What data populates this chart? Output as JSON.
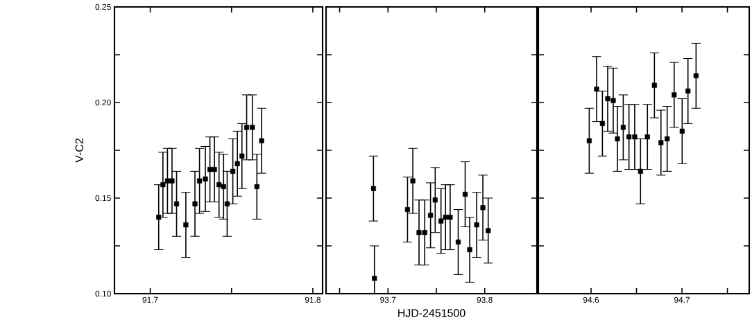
{
  "chart_data": [
    {
      "type": "scatter",
      "ylabel": "V-C2",
      "marker": "square",
      "xlim": [
        91.678,
        91.806
      ],
      "ylim": [
        0.1,
        0.25
      ],
      "xticks": [
        91.7,
        {
          "value": 91.75,
          "label": null
        },
        91.8
      ],
      "yticks": [
        {
          "value": 0.1,
          "label": "0.10"
        },
        {
          "value": 0.125,
          "label": null
        },
        0.15,
        {
          "value": 0.175,
          "label": null
        },
        {
          "value": 0.2,
          "label": "0.20"
        },
        {
          "value": 0.225,
          "label": null
        },
        0.25
      ],
      "series": [
        {
          "color": "#000000",
          "x": [
            91.7052,
            91.7078,
            91.7106,
            91.7134,
            91.7162,
            91.7219,
            91.7275,
            91.7303,
            91.7339,
            91.7367,
            91.7395,
            91.7423,
            91.7451,
            91.7473,
            91.7508,
            91.7536,
            91.7564,
            91.7593,
            91.7628,
            91.7656,
            91.7685
          ],
          "values": [
            0.14,
            0.157,
            0.159,
            0.159,
            0.147,
            0.136,
            0.147,
            0.159,
            0.16,
            0.165,
            0.165,
            0.157,
            0.156,
            0.147,
            0.164,
            0.168,
            0.172,
            0.187,
            0.187,
            0.156,
            0.18
          ],
          "errors": [
            0.017,
            0.017,
            0.017,
            0.017,
            0.017,
            0.017,
            0.017,
            0.017,
            0.017,
            0.017,
            0.017,
            0.017,
            0.017,
            0.017,
            0.017,
            0.017,
            0.017,
            0.017,
            0.017,
            0.017,
            0.017
          ]
        }
      ]
    },
    {
      "type": "scatter",
      "xlabel": "HJD-2451500",
      "marker": "square",
      "tick_labels": "x",
      "xlim": [
        93.636,
        93.854
      ],
      "ylim": [
        0.1,
        0.25
      ],
      "xticks": [
        {
          "value": 93.65,
          "label": null
        },
        93.7,
        {
          "value": 93.75,
          "label": null
        },
        93.8
      ],
      "yticks": [
        0.1,
        {
          "value": 0.125,
          "label": null
        },
        0.15,
        {
          "value": 0.175,
          "label": null
        },
        0.2,
        {
          "value": 0.225,
          "label": null
        },
        0.25
      ],
      "series": [
        {
          "color": "#000000",
          "x": [
            93.685,
            93.686,
            93.7202,
            93.7257,
            93.7321,
            93.738,
            93.744,
            93.7488,
            93.7548,
            93.7595,
            93.7643,
            93.7726,
            93.7798,
            93.7845,
            93.7917,
            93.7981,
            93.8036
          ],
          "values": [
            0.155,
            0.108,
            0.144,
            0.159,
            0.132,
            0.132,
            0.141,
            0.149,
            0.138,
            0.14,
            0.14,
            0.127,
            0.152,
            0.123,
            0.136,
            0.145,
            0.133
          ],
          "errors": [
            0.017,
            0.017,
            0.017,
            0.017,
            0.017,
            0.017,
            0.017,
            0.017,
            0.017,
            0.017,
            0.017,
            0.017,
            0.017,
            0.017,
            0.017,
            0.017,
            0.017
          ]
        }
      ]
    },
    {
      "type": "scatter",
      "marker": "square",
      "tick_labels": "x",
      "xlim": [
        94.542,
        94.774
      ],
      "ylim": [
        0.1,
        0.25
      ],
      "xticks": [
        94.6,
        {
          "value": 94.65,
          "label": null
        },
        94.7,
        {
          "value": 94.75,
          "label": null
        }
      ],
      "yticks": [
        0.1,
        {
          "value": 0.125,
          "label": null
        },
        0.15,
        {
          "value": 0.175,
          "label": null
        },
        0.2,
        {
          "value": 0.225,
          "label": null
        },
        0.25
      ],
      "series": [
        {
          "color": "#000000",
          "x": [
            94.598,
            94.6061,
            94.6125,
            94.6183,
            94.6244,
            94.629,
            94.6354,
            94.6417,
            94.648,
            94.6544,
            94.662,
            94.6697,
            94.6769,
            94.6837,
            94.6914,
            94.7002,
            94.7066,
            94.7155
          ],
          "values": [
            0.18,
            0.207,
            0.189,
            0.202,
            0.201,
            0.181,
            0.187,
            0.182,
            0.182,
            0.164,
            0.182,
            0.209,
            0.179,
            0.181,
            0.204,
            0.185,
            0.206,
            0.214
          ],
          "errors": [
            0.017,
            0.017,
            0.017,
            0.017,
            0.017,
            0.017,
            0.017,
            0.017,
            0.017,
            0.017,
            0.017,
            0.017,
            0.017,
            0.017,
            0.017,
            0.017,
            0.017,
            0.017
          ]
        }
      ]
    }
  ]
}
